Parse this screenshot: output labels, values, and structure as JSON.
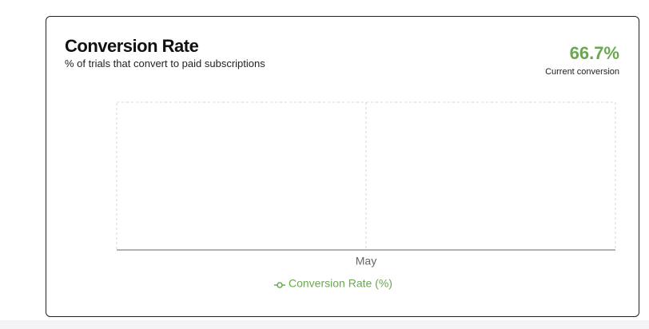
{
  "card": {
    "title": "Conversion Rate",
    "subtitle": "% of trials that convert to paid subscriptions",
    "kpi_value": "66.7%",
    "kpi_caption": "Current conversion"
  },
  "chart_data": {
    "type": "line",
    "categories": [
      "May"
    ],
    "series": [
      {
        "name": "Conversion Rate (%)",
        "color": "#6aa84f",
        "values": [
          null
        ]
      }
    ],
    "grid": true,
    "legend": "bottom"
  }
}
